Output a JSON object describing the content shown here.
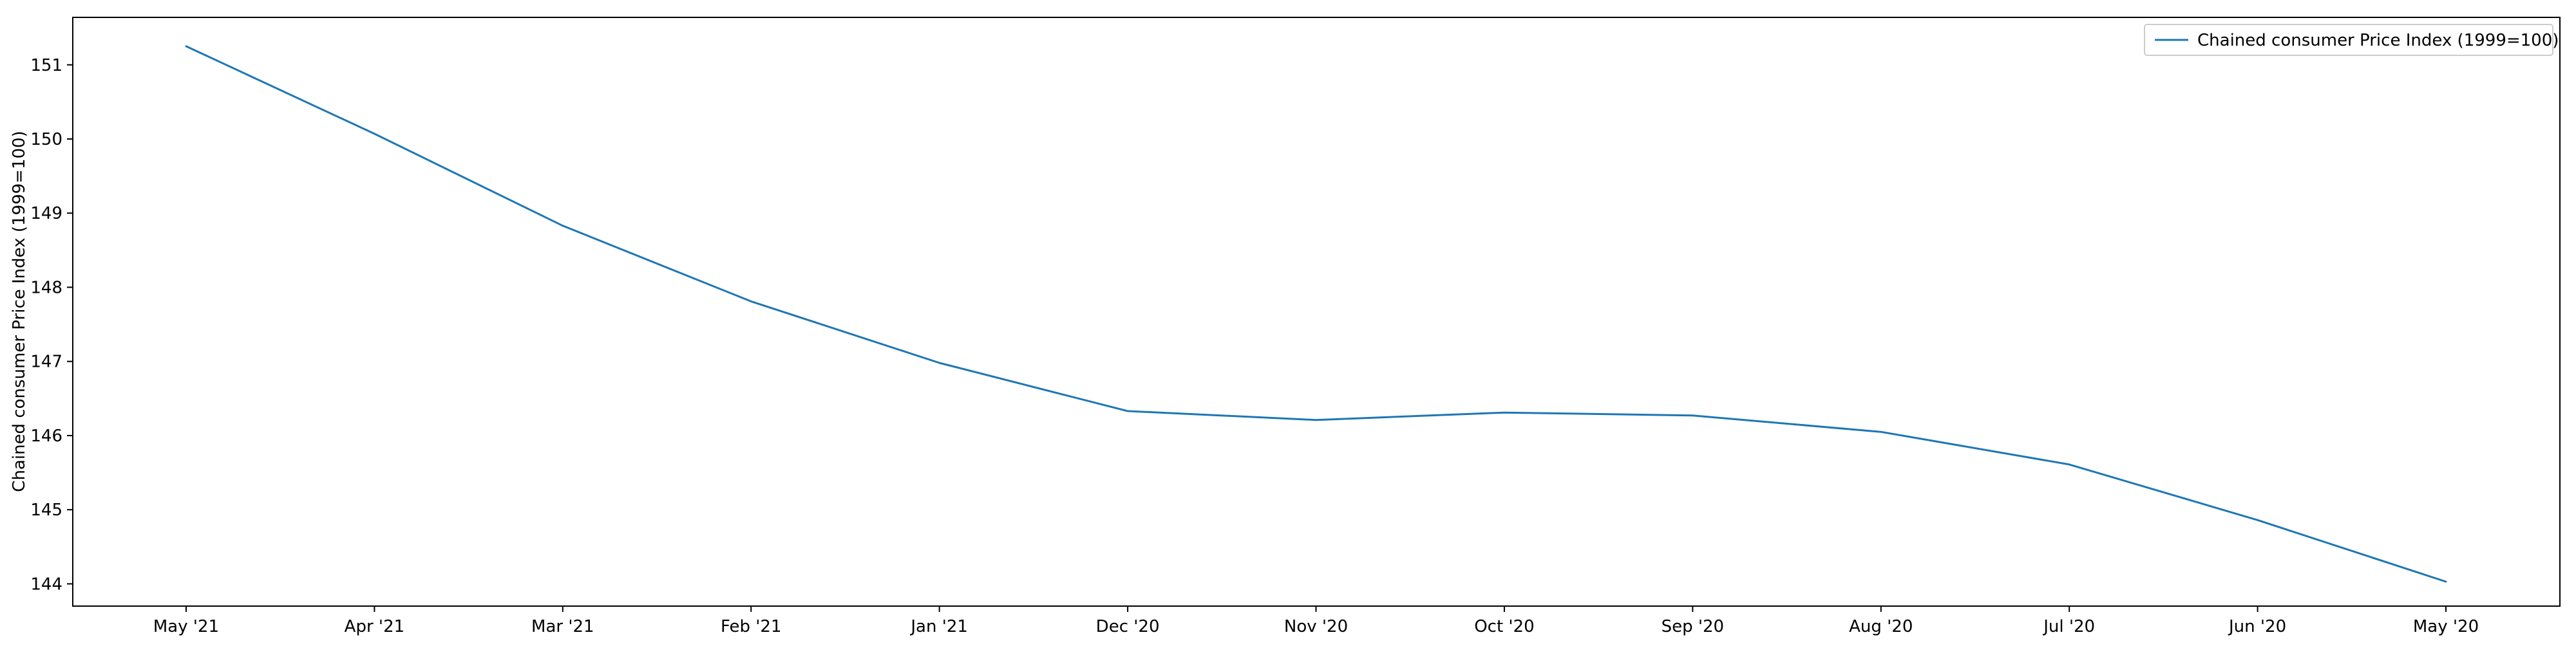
{
  "chart_data": {
    "type": "line",
    "title": "",
    "xlabel": "",
    "ylabel": "Chained consumer Price Index (1999=100)",
    "categories": [
      "May '21",
      "Apr '21",
      "Mar '21",
      "Feb '21",
      "Jan '21",
      "Dec '20",
      "Nov '20",
      "Oct '20",
      "Sep '20",
      "Aug '20",
      "Jul '20",
      "Jun '20",
      "May '20"
    ],
    "series": [
      {
        "name": "Chained consumer Price Index (1999=100)",
        "values": [
          151.25,
          150.07,
          148.83,
          147.81,
          146.98,
          146.33,
          146.21,
          146.31,
          146.27,
          146.05,
          145.61,
          144.86,
          144.03
        ],
        "color": "#1f77b4"
      }
    ],
    "yticks": [
      144,
      145,
      146,
      147,
      148,
      149,
      150,
      151
    ],
    "ylim": [
      143.7,
      151.64
    ],
    "grid": false,
    "legend": "top-right"
  }
}
